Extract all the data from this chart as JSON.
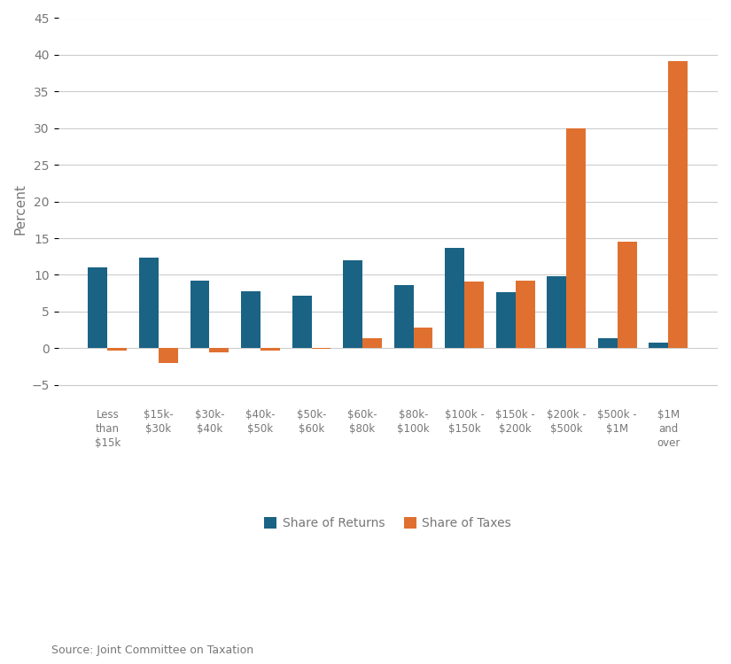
{
  "categories": [
    "Less\nthan\n$15k",
    "$15k-\n$30k",
    "$30k-\n$40k",
    "$40k-\n$50k",
    "$50k-\n$60k",
    "$60k-\n$80k",
    "$80k-\n$100k",
    "$100k -\n$150k",
    "$150k -\n$200k",
    "$200k -\n$500k",
    "$500k -\n$1M",
    "$1M\nand\nover"
  ],
  "share_of_returns": [
    11.0,
    12.3,
    9.2,
    7.8,
    7.2,
    12.0,
    8.6,
    13.7,
    7.6,
    9.8,
    1.3,
    0.7
  ],
  "share_of_taxes": [
    -0.3,
    -2.0,
    -0.6,
    -0.3,
    -0.1,
    1.4,
    2.8,
    9.1,
    9.2,
    30.0,
    14.5,
    39.2
  ],
  "returns_color": "#1a6384",
  "taxes_color": "#e07030",
  "ylabel": "Percent",
  "ylim": [
    -7,
    45
  ],
  "yticks": [
    -5,
    0,
    5,
    10,
    15,
    20,
    25,
    30,
    35,
    40,
    45
  ],
  "legend_labels": [
    "Share of Returns",
    "Share of Taxes"
  ],
  "source_text": "Source: Joint Committee on Taxation",
  "background_color": "#ffffff",
  "grid_color": "#cccccc",
  "bar_width": 0.38
}
